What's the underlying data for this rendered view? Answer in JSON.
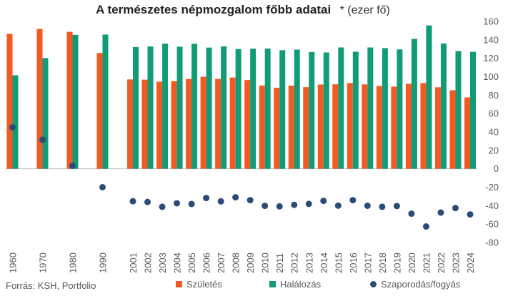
{
  "chart_data": {
    "type": "bar",
    "title": "A természetes népmozgalom főbb adatai",
    "title_suffix": "* (ezer fő)",
    "categories": [
      "1960",
      "1970",
      "1980",
      "1990",
      "2001",
      "2002",
      "2003",
      "2004",
      "2005",
      "2006",
      "2007",
      "2008",
      "2009",
      "2010",
      "2011",
      "2012",
      "2013",
      "2014",
      "2015",
      "2016",
      "2017",
      "2018",
      "2019",
      "2020",
      "2021",
      "2022",
      "2023",
      "2024"
    ],
    "series": [
      {
        "name": "Születés",
        "kind": "bar",
        "color": "#F15A22",
        "values": [
          146.5,
          151.8,
          148.7,
          125.7,
          97.0,
          96.8,
          94.6,
          95.1,
          97.5,
          99.9,
          97.6,
          99.1,
          96.4,
          90.3,
          88.0,
          90.3,
          88.7,
          91.5,
          91.7,
          93.1,
          91.6,
          89.8,
          89.2,
          92.3,
          93.0,
          88.5,
          85.2,
          77.5
        ]
      },
      {
        "name": "Halálozás",
        "kind": "bar",
        "color": "#129B77",
        "values": [
          101.5,
          120.2,
          145.4,
          145.7,
          132.2,
          132.8,
          135.8,
          132.5,
          135.7,
          131.6,
          132.9,
          130.0,
          130.4,
          130.5,
          128.8,
          129.4,
          126.8,
          126.3,
          131.7,
          127.1,
          131.7,
          131.0,
          129.6,
          141.0,
          155.6,
          136.0,
          127.8,
          127.0
        ]
      },
      {
        "name": "Szaporodás/fogyás",
        "kind": "dot",
        "color": "#2C4C78",
        "values": [
          45.0,
          31.6,
          3.3,
          -20.0,
          -35.2,
          -36.0,
          -41.2,
          -37.4,
          -38.2,
          -31.7,
          -35.3,
          -30.9,
          -34.0,
          -40.2,
          -40.8,
          -39.1,
          -38.1,
          -34.8,
          -40.0,
          -34.0,
          -40.1,
          -41.2,
          -40.4,
          -48.7,
          -62.6,
          -47.5,
          -42.6,
          -49.5
        ]
      }
    ],
    "ylim": [
      -80,
      160
    ],
    "yticks": [
      -80,
      -60,
      -40,
      -20,
      0,
      20,
      40,
      60,
      80,
      100,
      120,
      140,
      160
    ],
    "xlabel": "",
    "ylabel": "",
    "legend_position": "bottom"
  },
  "source": "Forrás: KSH, Portfolio"
}
